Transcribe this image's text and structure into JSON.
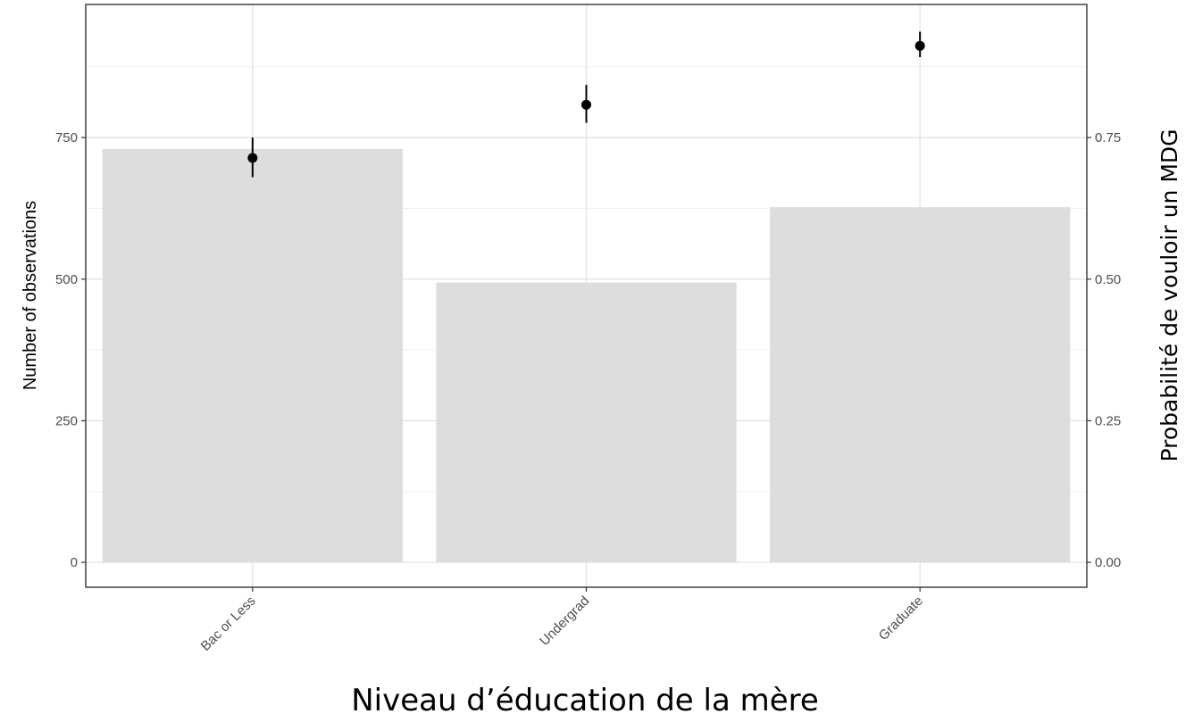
{
  "chart_data": {
    "type": "bar",
    "categories": [
      "Bac or Less",
      "Undergrad",
      "Graduate"
    ],
    "series": [
      {
        "axis": "left",
        "type": "bar",
        "color": "#dddddd",
        "values": [
          730,
          494,
          627
        ]
      },
      {
        "axis": "right",
        "type": "pointrange",
        "color": "#000000",
        "values": [
          0.714,
          0.808,
          0.912
        ],
        "lower": [
          0.68,
          0.776,
          0.892
        ],
        "upper": [
          0.75,
          0.843,
          0.937
        ]
      }
    ],
    "xlabel": "Niveau d’éducation de la mère",
    "ylabel": "Number of observations",
    "ylabel_right": "Probabilité de vouloir un MDG",
    "ylim": [
      -44,
      985
    ],
    "ylim_right": [
      -0.044,
      0.985
    ],
    "yticks": [
      0,
      250,
      500,
      750
    ],
    "yticks_right": [
      "0.00",
      "0.25",
      "0.50",
      "0.75"
    ],
    "grid": true,
    "legend": "none"
  }
}
